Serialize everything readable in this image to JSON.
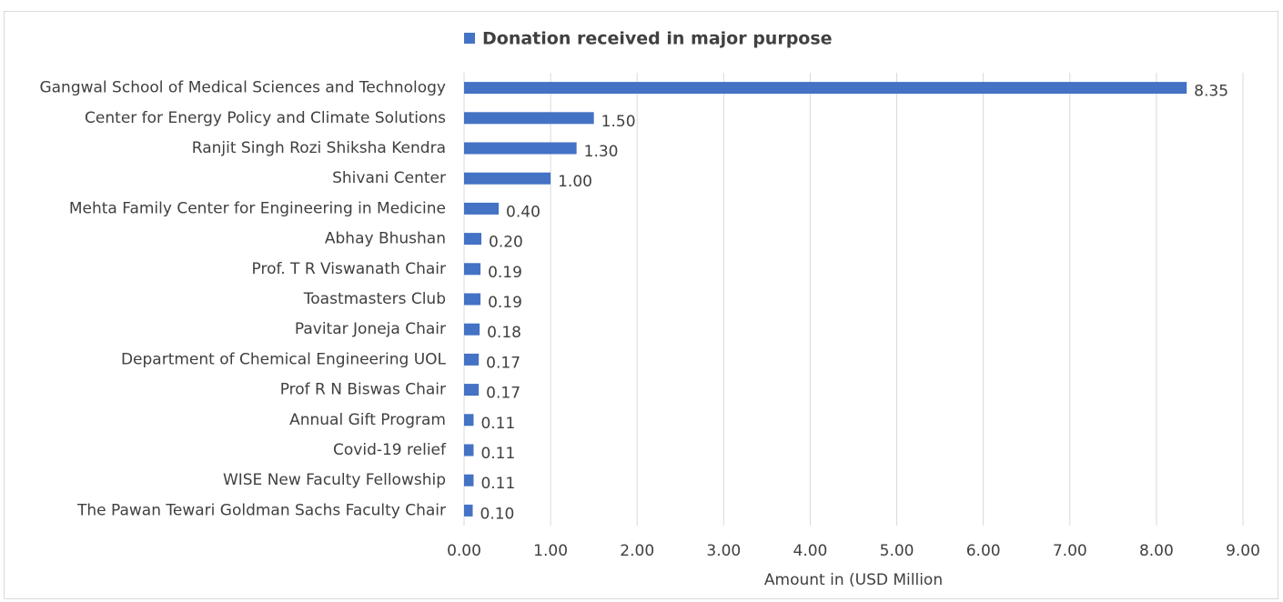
{
  "chart_data": {
    "type": "bar",
    "orientation": "horizontal",
    "categories": [
      "Gangwal School of Medical Sciences and Technology",
      "Center for Energy Policy and Climate Solutions",
      "Ranjit Singh Rozi Shiksha Kendra",
      "Shivani Center",
      "Mehta Family Center for Engineering in Medicine",
      "Abhay Bhushan",
      "Prof. T R Viswanath Chair",
      "Toastmasters Club",
      "Pavitar Joneja Chair",
      "Department of Chemical Engineering UOL",
      "Prof R N Biswas Chair",
      "Annual Gift Program",
      "Covid-19 relief",
      "WISE New Faculty Fellowship",
      "The Pawan Tewari Goldman Sachs Faculty Chair"
    ],
    "series": [
      {
        "name": "Donation received in major purpose",
        "color": "#4472c4",
        "values": [
          8.35,
          1.5,
          1.3,
          1.0,
          0.4,
          0.2,
          0.19,
          0.19,
          0.18,
          0.17,
          0.17,
          0.11,
          0.11,
          0.11,
          0.1
        ],
        "value_labels": [
          "8.35",
          "1.50",
          "1.30",
          "1.00",
          "0.40",
          "0.20",
          "0.19",
          "0.19",
          "0.18",
          "0.17",
          "0.17",
          "0.11",
          "0.11",
          "0.11",
          "0.10"
        ]
      }
    ],
    "xlabel": "Amount in (USD Million",
    "xlim": [
      0,
      9
    ],
    "xticks": [
      {
        "value": 0,
        "label": "0.00"
      },
      {
        "value": 1,
        "label": "1.00"
      },
      {
        "value": 2,
        "label": "2.00"
      },
      {
        "value": 3,
        "label": "3.00"
      },
      {
        "value": 4,
        "label": "4.00"
      },
      {
        "value": 5,
        "label": "5.00"
      },
      {
        "value": 6,
        "label": "6.00"
      },
      {
        "value": 7,
        "label": "7.00"
      },
      {
        "value": 8,
        "label": "8.00"
      },
      {
        "value": 9,
        "label": "9.00"
      }
    ],
    "grid": true,
    "legend": "top"
  }
}
